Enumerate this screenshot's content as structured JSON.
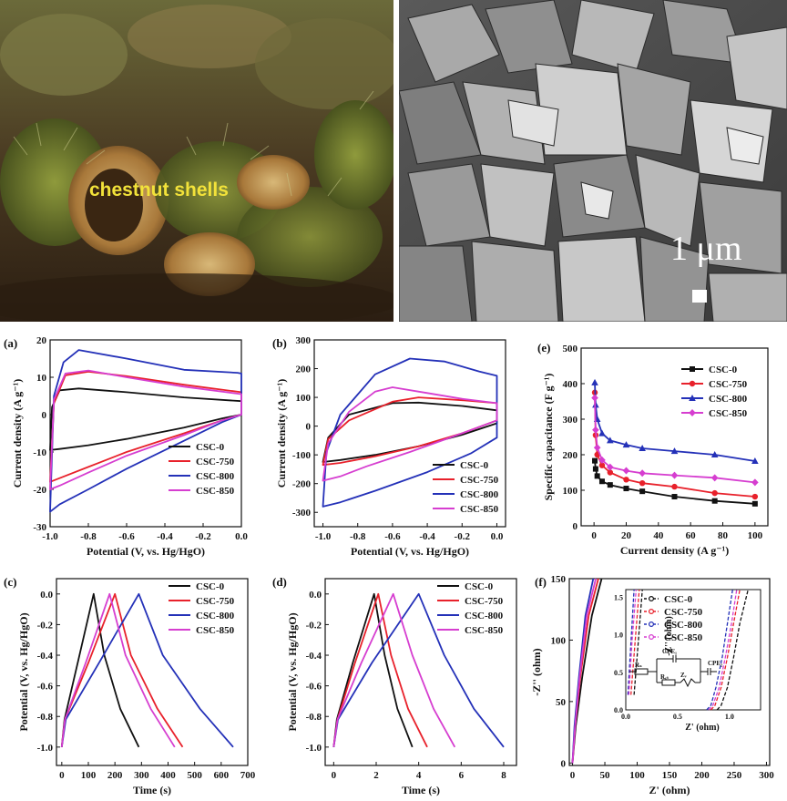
{
  "photos": {
    "left_caption": "chestnut shells",
    "right_scalebar": "1 μm"
  },
  "colors": {
    "CSC-0": "#111111",
    "CSC-750": "#e8212b",
    "CSC-800": "#2431b8",
    "CSC-850": "#d63ed0"
  },
  "chart_data": [
    {
      "id": "a",
      "label": "(a)",
      "type": "line",
      "xlabel": "Potential (V, vs. Hg/HgO)",
      "ylabel": "Current density (A g⁻¹)",
      "xlim": [
        -1.0,
        0.0
      ],
      "ylim": [
        -30,
        20
      ],
      "xticks": [
        "-1.0",
        "-0.8",
        "-0.6",
        "-0.4",
        "-0.2",
        "0.0"
      ],
      "yticks": [
        "20",
        "10",
        "0",
        "-10",
        "-20",
        "-30"
      ],
      "legend": "bottom-right",
      "series": [
        {
          "name": "CSC-0",
          "color": "#111111",
          "x": [
            -1.0,
            -0.99,
            -0.95,
            -0.85,
            -0.6,
            -0.3,
            0,
            0,
            -0.1,
            -0.3,
            -0.6,
            -0.8,
            -0.95,
            -1.0
          ],
          "y": [
            -9.5,
            2,
            6.5,
            7,
            6,
            4.6,
            3.6,
            0,
            -1,
            -3.5,
            -6.5,
            -8.2,
            -9.2,
            -9.5
          ]
        },
        {
          "name": "CSC-750",
          "color": "#e8212b",
          "x": [
            -1.0,
            -0.98,
            -0.92,
            -0.8,
            -0.6,
            -0.3,
            0,
            0,
            -0.1,
            -0.3,
            -0.6,
            -0.8,
            -0.95,
            -1.0
          ],
          "y": [
            -18,
            3,
            10.5,
            11.5,
            10.3,
            8,
            6,
            0,
            -1.5,
            -5,
            -10,
            -14,
            -17,
            -18
          ]
        },
        {
          "name": "CSC-800",
          "color": "#2431b8",
          "x": [
            -1.0,
            -0.98,
            -0.93,
            -0.85,
            -0.6,
            -0.3,
            -0.02,
            0,
            0,
            -0.1,
            -0.3,
            -0.6,
            -0.8,
            -0.95,
            -1.0
          ],
          "y": [
            -26,
            5,
            14,
            17.3,
            15,
            12,
            11.2,
            11,
            0,
            -2,
            -7,
            -14.5,
            -20,
            -24,
            -26
          ]
        },
        {
          "name": "CSC-850",
          "color": "#d63ed0",
          "x": [
            -1.0,
            -0.98,
            -0.92,
            -0.8,
            -0.6,
            -0.3,
            0,
            0,
            -0.1,
            -0.3,
            -0.6,
            -0.8,
            -0.95,
            -1.0
          ],
          "y": [
            -20,
            4,
            11,
            11.8,
            10,
            7.5,
            5.5,
            0,
            -1.5,
            -5.5,
            -11,
            -15.5,
            -19,
            -20
          ]
        }
      ]
    },
    {
      "id": "b",
      "label": "(b)",
      "type": "line",
      "xlabel": "Potential (V, vs. Hg/HgO)",
      "ylabel": "Current density (A g⁻¹)",
      "xlim": [
        -1.05,
        0.05
      ],
      "ylim": [
        -350,
        300
      ],
      "xticks": [
        "-1.0",
        "-0.8",
        "-0.6",
        "-0.4",
        "-0.2",
        "0.0"
      ],
      "yticks": [
        "300",
        "200",
        "100",
        "0",
        "-100",
        "-200",
        "-300"
      ],
      "legend": "bottom-right",
      "series": [
        {
          "name": "CSC-0",
          "color": "#111111",
          "x": [
            -1.0,
            -0.97,
            -0.85,
            -0.6,
            -0.45,
            -0.2,
            0,
            0,
            -0.2,
            -0.45,
            -0.7,
            -0.9,
            -1.0
          ],
          "y": [
            -125,
            -40,
            40,
            80,
            82,
            70,
            55,
            10,
            -30,
            -70,
            -100,
            -118,
            -125
          ]
        },
        {
          "name": "CSC-750",
          "color": "#e8212b",
          "x": [
            -1.0,
            -0.97,
            -0.85,
            -0.6,
            -0.45,
            -0.2,
            0,
            0,
            -0.2,
            -0.45,
            -0.7,
            -0.9,
            -1.0
          ],
          "y": [
            -135,
            -45,
            20,
            85,
            100,
            90,
            80,
            20,
            -25,
            -70,
            -105,
            -128,
            -135
          ]
        },
        {
          "name": "CSC-800",
          "color": "#2431b8",
          "x": [
            -1.0,
            -0.98,
            -0.9,
            -0.7,
            -0.5,
            -0.3,
            -0.1,
            0,
            0,
            -0.15,
            -0.4,
            -0.7,
            -0.9,
            -1.0
          ],
          "y": [
            -280,
            -90,
            40,
            180,
            235,
            225,
            190,
            175,
            -40,
            -95,
            -160,
            -225,
            -265,
            -280
          ]
        },
        {
          "name": "CSC-850",
          "color": "#d63ed0",
          "x": [
            -1.0,
            -0.97,
            -0.85,
            -0.7,
            -0.6,
            -0.4,
            -0.2,
            0,
            0,
            -0.2,
            -0.5,
            -0.75,
            -0.9,
            -1.0
          ],
          "y": [
            -190,
            -60,
            50,
            120,
            135,
            115,
            95,
            80,
            20,
            -25,
            -90,
            -140,
            -175,
            -190
          ]
        }
      ]
    },
    {
      "id": "e",
      "label": "(e)",
      "type": "line",
      "xlabel": "Current density (A g⁻¹)",
      "ylabel": "Specific capacitance (F g⁻¹)",
      "xlim": [
        -8,
        108
      ],
      "ylim": [
        0,
        500
      ],
      "xticks": [
        "0",
        "20",
        "40",
        "60",
        "80",
        "100"
      ],
      "yticks": [
        "500",
        "400",
        "300",
        "200",
        "100",
        "0"
      ],
      "legend": "top-right",
      "markers": true,
      "series": [
        {
          "name": "CSC-0",
          "color": "#111111",
          "marker": "square",
          "x": [
            0.5,
            1,
            2,
            5,
            10,
            20,
            30,
            50,
            75,
            100
          ],
          "y": [
            183,
            160,
            140,
            125,
            115,
            105,
            97,
            82,
            70,
            62
          ]
        },
        {
          "name": "CSC-750",
          "color": "#e8212b",
          "marker": "circle",
          "x": [
            0.5,
            1,
            2,
            5,
            10,
            20,
            30,
            50,
            75,
            100
          ],
          "y": [
            375,
            255,
            200,
            170,
            150,
            130,
            120,
            110,
            92,
            82
          ]
        },
        {
          "name": "CSC-800",
          "color": "#2431b8",
          "marker": "triangle",
          "x": [
            0.5,
            1,
            2,
            5,
            10,
            20,
            30,
            50,
            75,
            100
          ],
          "y": [
            403,
            340,
            300,
            260,
            240,
            228,
            218,
            210,
            200,
            182
          ]
        },
        {
          "name": "CSC-850",
          "color": "#d63ed0",
          "marker": "diamond",
          "x": [
            0.5,
            1,
            2,
            5,
            10,
            20,
            30,
            50,
            75,
            100
          ],
          "y": [
            360,
            270,
            220,
            185,
            165,
            155,
            148,
            142,
            135,
            122
          ]
        }
      ]
    },
    {
      "id": "c",
      "label": "(c)",
      "type": "line",
      "xlabel": "Time (s)",
      "ylabel": "Potential (V, vs. Hg/HgO)",
      "xlim": [
        -20,
        700
      ],
      "ylim": [
        -1.12,
        0.1
      ],
      "xticks": [
        "0",
        "100",
        "200",
        "300",
        "400",
        "500",
        "600",
        "700"
      ],
      "yticks": [
        "0.0",
        "-0.2",
        "-0.4",
        "-0.6",
        "-0.8",
        "-1.0"
      ],
      "legend": "top-right",
      "series": [
        {
          "name": "CSC-0",
          "color": "#111111",
          "x": [
            0,
            10,
            60,
            120,
            160,
            220,
            290
          ],
          "y": [
            -1.0,
            -0.82,
            -0.45,
            0,
            -0.4,
            -0.75,
            -1.0
          ]
        },
        {
          "name": "CSC-750",
          "color": "#e8212b",
          "x": [
            0,
            12,
            100,
            200,
            260,
            360,
            455
          ],
          "y": [
            -1.0,
            -0.82,
            -0.45,
            0,
            -0.4,
            -0.75,
            -1.0
          ]
        },
        {
          "name": "CSC-800",
          "color": "#2431b8",
          "x": [
            0,
            15,
            140,
            290,
            380,
            520,
            645
          ],
          "y": [
            -1.0,
            -0.82,
            -0.45,
            0,
            -0.4,
            -0.75,
            -1.0
          ]
        },
        {
          "name": "CSC-850",
          "color": "#d63ed0",
          "x": [
            0,
            12,
            90,
            180,
            240,
            335,
            425
          ],
          "y": [
            -1.0,
            -0.82,
            -0.45,
            0,
            -0.4,
            -0.75,
            -1.0
          ]
        }
      ]
    },
    {
      "id": "d",
      "label": "(d)",
      "type": "line",
      "xlabel": "Time (s)",
      "ylabel": "Potential (V, vs. Hg/HgO)",
      "xlim": [
        -0.4,
        8.6
      ],
      "ylim": [
        -1.12,
        0.1
      ],
      "xticks": [
        "0",
        "2",
        "4",
        "6",
        "8"
      ],
      "yticks": [
        "0.0",
        "-0.2",
        "-0.4",
        "-0.6",
        "-0.8",
        "-1.0"
      ],
      "legend": "top-right",
      "series": [
        {
          "name": "CSC-0",
          "color": "#111111",
          "x": [
            0,
            0.15,
            0.9,
            1.9,
            2.4,
            3.0,
            3.7
          ],
          "y": [
            -1.0,
            -0.82,
            -0.45,
            0,
            -0.4,
            -0.75,
            -1.0
          ]
        },
        {
          "name": "CSC-750",
          "color": "#e8212b",
          "x": [
            0,
            0.18,
            1.0,
            2.1,
            2.7,
            3.5,
            4.4
          ],
          "y": [
            -1.0,
            -0.82,
            -0.45,
            0,
            -0.4,
            -0.75,
            -1.0
          ]
        },
        {
          "name": "CSC-800",
          "color": "#2431b8",
          "x": [
            0,
            0.2,
            1.8,
            4.0,
            5.2,
            6.6,
            8.0
          ],
          "y": [
            -1.0,
            -0.82,
            -0.45,
            0,
            -0.4,
            -0.75,
            -1.0
          ]
        },
        {
          "name": "CSC-850",
          "color": "#d63ed0",
          "x": [
            0,
            0.18,
            1.3,
            2.8,
            3.7,
            4.7,
            5.7
          ],
          "y": [
            -1.0,
            -0.82,
            -0.45,
            0,
            -0.4,
            -0.75,
            -1.0
          ]
        }
      ]
    },
    {
      "id": "f",
      "label": "(f)",
      "type": "line",
      "xlabel": "Z' (ohm)",
      "ylabel": "-Z'' (ohm)",
      "xlim": [
        -5,
        305
      ],
      "ylim": [
        -2,
        150
      ],
      "xticks": [
        "0",
        "50",
        "100",
        "150",
        "200",
        "250",
        "300"
      ],
      "yticks": [
        "150",
        "100",
        "50",
        "0"
      ],
      "legend": "inset-top",
      "series": [
        {
          "name": "CSC-0",
          "color": "#111111",
          "x": [
            0,
            5,
            15,
            30,
            45
          ],
          "y": [
            0,
            30,
            70,
            120,
            150
          ]
        },
        {
          "name": "CSC-750",
          "color": "#e8212b",
          "x": [
            0,
            4,
            12,
            25,
            40
          ],
          "y": [
            0,
            30,
            70,
            120,
            150
          ]
        },
        {
          "name": "CSC-800",
          "color": "#2431b8",
          "x": [
            0,
            3,
            10,
            20,
            32
          ],
          "y": [
            0,
            30,
            70,
            120,
            150
          ]
        },
        {
          "name": "CSC-850",
          "color": "#d63ed0",
          "x": [
            0,
            4,
            11,
            22,
            36
          ],
          "y": [
            0,
            30,
            70,
            120,
            150
          ]
        }
      ],
      "inset": {
        "xlabel": "Z' (ohm)",
        "ylabel": "-Z'' (ohm)",
        "xlim": [
          0,
          1.3
        ],
        "ylim": [
          0,
          1.6
        ],
        "xticks": [
          "0.0",
          "0.5",
          "1.0"
        ],
        "yticks": [
          "1.5",
          "1.0",
          "0.5",
          "0.0"
        ],
        "circuit_labels": [
          "CPE₁",
          "CPE₂",
          "Rₛ",
          "Rₑₜ",
          "Zᵥ"
        ],
        "series": [
          {
            "name": "CSC-0",
            "color": "#111111",
            "x": [
              0.88,
              0.92,
              0.98,
              1.04,
              1.1,
              1.18
            ],
            "y": [
              0.0,
              0.06,
              0.3,
              0.7,
              1.15,
              1.6
            ]
          },
          {
            "name": "CSC-750",
            "color": "#e8212b",
            "x": [
              0.82,
              0.86,
              0.92,
              0.98,
              1.04,
              1.1
            ],
            "y": [
              0.0,
              0.06,
              0.3,
              0.7,
              1.15,
              1.6
            ]
          },
          {
            "name": "CSC-800",
            "color": "#2431b8",
            "x": [
              0.78,
              0.82,
              0.87,
              0.93,
              0.98,
              1.03
            ],
            "y": [
              0.0,
              0.06,
              0.3,
              0.7,
              1.15,
              1.6
            ]
          },
          {
            "name": "CSC-850",
            "color": "#d63ed0",
            "x": [
              0.8,
              0.84,
              0.9,
              0.96,
              1.02,
              1.07
            ],
            "y": [
              0.0,
              0.06,
              0.3,
              0.7,
              1.15,
              1.6
            ]
          }
        ],
        "steep": [
          {
            "color": "#2431b8",
            "x": [
              0.02,
              0.05,
              0.08
            ],
            "y": [
              0.2,
              0.9,
              1.6
            ]
          },
          {
            "color": "#d63ed0",
            "x": [
              0.03,
              0.06,
              0.1
            ],
            "y": [
              0.2,
              0.9,
              1.6
            ]
          },
          {
            "color": "#e8212b",
            "x": [
              0.05,
              0.09,
              0.13
            ],
            "y": [
              0.2,
              0.9,
              1.6
            ]
          },
          {
            "color": "#111111",
            "x": [
              0.08,
              0.12,
              0.16
            ],
            "y": [
              0.2,
              0.9,
              1.6
            ]
          }
        ]
      }
    }
  ]
}
